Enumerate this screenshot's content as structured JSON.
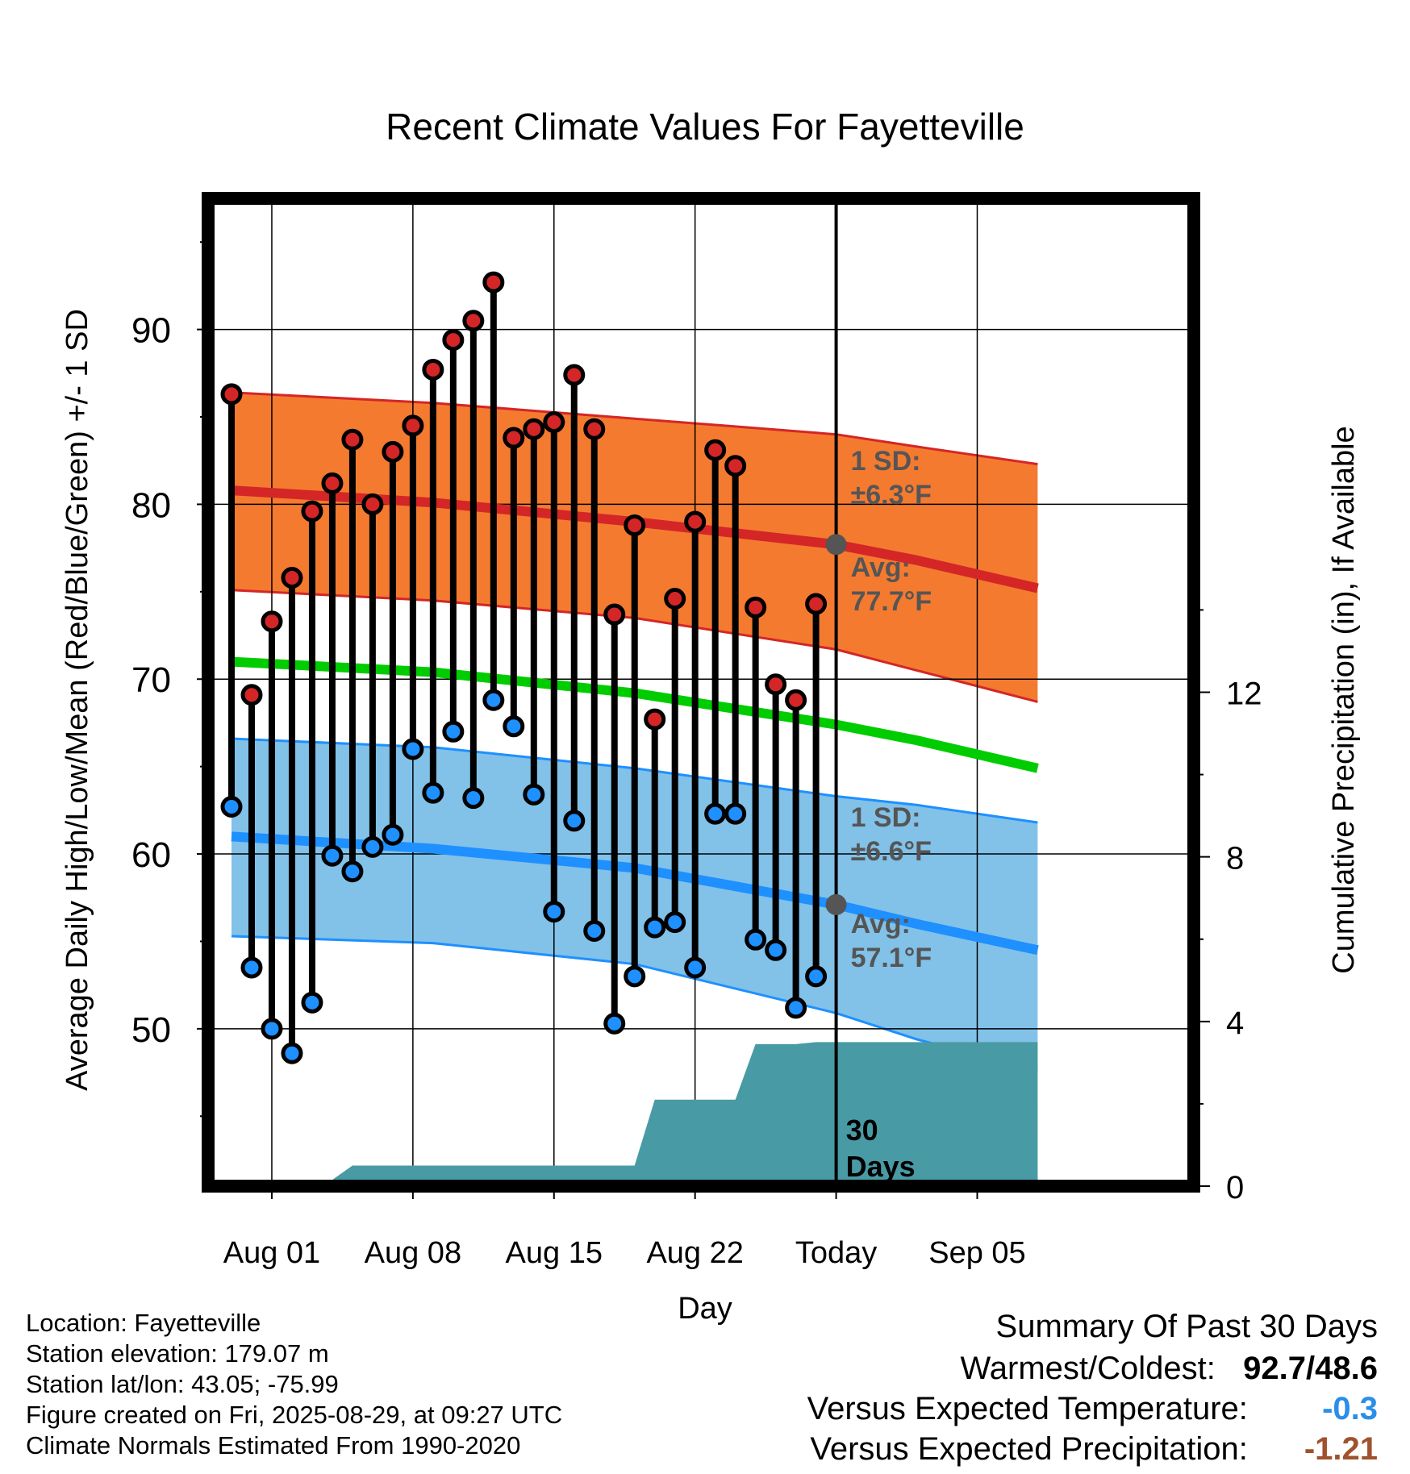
{
  "chart_data": {
    "type": "line",
    "title": "Recent Climate Values For Fayetteville",
    "xlabel": "Day",
    "ylabel": "Average Daily High/Low/Mean (Red/Blue/Green) +/- 1 SD",
    "y2label": "Cumulative Precipitation (in), If Available",
    "x_ticks": [
      "Aug 01",
      "Aug 08",
      "Aug 15",
      "Aug 22",
      "Today",
      "Sep 05"
    ],
    "y_ticks": [
      50,
      60,
      70,
      80,
      90
    ],
    "y2_ticks": [
      0,
      4,
      8,
      12
    ],
    "ylim": [
      41,
      97.5
    ],
    "y2lim": [
      0,
      24
    ],
    "grid": true,
    "days": [
      "Jul 30",
      "Jul 31",
      "Aug 01",
      "Aug 02",
      "Aug 03",
      "Aug 04",
      "Aug 05",
      "Aug 06",
      "Aug 07",
      "Aug 08",
      "Aug 09",
      "Aug 10",
      "Aug 11",
      "Aug 12",
      "Aug 13",
      "Aug 14",
      "Aug 15",
      "Aug 16",
      "Aug 17",
      "Aug 18",
      "Aug 19",
      "Aug 20",
      "Aug 21",
      "Aug 22",
      "Aug 23",
      "Aug 24",
      "Aug 25",
      "Aug 26",
      "Aug 27",
      "Aug 28"
    ],
    "daily_high": [
      86.3,
      69.1,
      73.3,
      75.8,
      79.6,
      81.2,
      83.7,
      80.0,
      83.0,
      84.5,
      87.7,
      89.4,
      90.5,
      92.7,
      83.8,
      84.3,
      84.7,
      87.4,
      84.3,
      73.7,
      78.8,
      67.7,
      74.6,
      79.0,
      83.1,
      82.2,
      74.1,
      69.7,
      68.8,
      74.3
    ],
    "daily_low": [
      62.7,
      53.5,
      50.0,
      48.6,
      51.5,
      59.9,
      59.0,
      60.4,
      61.1,
      66.0,
      63.5,
      67.0,
      63.2,
      68.8,
      67.3,
      63.4,
      56.7,
      61.9,
      55.6,
      50.3,
      53.0,
      55.8,
      56.1,
      53.5,
      62.3,
      62.3,
      55.1,
      54.5,
      51.2,
      53.0
    ],
    "normals": {
      "high_avg": [
        [
          0,
          80.8
        ],
        [
          10,
          80.1
        ],
        [
          20,
          79.0
        ],
        [
          30,
          77.7
        ],
        [
          34,
          76.8
        ],
        [
          40,
          75.2
        ]
      ],
      "high_upper": [
        [
          0,
          86.4
        ],
        [
          10,
          85.8
        ],
        [
          20,
          84.9
        ],
        [
          30,
          84.0
        ],
        [
          34,
          83.3
        ],
        [
          40,
          82.3
        ]
      ],
      "high_lower": [
        [
          0,
          75.1
        ],
        [
          10,
          74.5
        ],
        [
          20,
          73.5
        ],
        [
          30,
          71.7
        ],
        [
          34,
          70.5
        ],
        [
          40,
          68.7
        ]
      ],
      "mean": [
        [
          0,
          71.0
        ],
        [
          10,
          70.4
        ],
        [
          20,
          69.2
        ],
        [
          30,
          67.4
        ],
        [
          34,
          66.5
        ],
        [
          40,
          64.9
        ]
      ],
      "low_avg": [
        [
          0,
          61.0
        ],
        [
          10,
          60.3
        ],
        [
          20,
          59.2
        ],
        [
          30,
          57.1
        ],
        [
          34,
          56.0
        ],
        [
          40,
          54.5
        ]
      ],
      "low_upper": [
        [
          0,
          66.6
        ],
        [
          10,
          66.1
        ],
        [
          20,
          64.9
        ],
        [
          30,
          63.3
        ],
        [
          34,
          62.8
        ],
        [
          40,
          61.8
        ]
      ],
      "low_lower": [
        [
          0,
          55.3
        ],
        [
          10,
          54.9
        ],
        [
          20,
          53.7
        ],
        [
          30,
          50.9
        ],
        [
          34,
          49.4
        ],
        [
          40,
          47.6
        ]
      ]
    },
    "precip_cumulative": [
      [
        -1,
        0
      ],
      [
        0.9,
        0
      ],
      [
        1,
        0.15
      ],
      [
        5,
        0.15
      ],
      [
        6,
        0.5
      ],
      [
        19,
        0.5
      ],
      [
        20,
        0.5
      ],
      [
        21,
        2.1
      ],
      [
        22,
        2.1
      ],
      [
        24,
        2.1
      ],
      [
        25,
        2.1
      ],
      [
        26,
        3.45
      ],
      [
        28,
        3.45
      ],
      [
        29,
        3.5
      ],
      [
        30,
        3.5
      ],
      [
        40,
        3.5
      ]
    ],
    "today_index": 30,
    "annotations": {
      "high_sd": "1 SD:",
      "high_sd_value": "±6.3°F",
      "high_avg_label": "Avg:",
      "high_avg_value": "77.7°F",
      "low_sd": "1 SD:",
      "low_sd_value": "±6.6°F",
      "low_avg_label": "Avg:",
      "low_avg_value": "57.1°F",
      "window": "30",
      "window_unit": "Days"
    },
    "colors": {
      "high_band": "#f47a30",
      "high_line": "#d42626",
      "mean_line": "#00cc00",
      "low_band": "#82c1e8",
      "low_line": "#1e90ff",
      "precip": "#489ba5",
      "high_marker": "#d42626",
      "low_marker": "#1e90ff",
      "annotation": "#555555"
    }
  },
  "footer": {
    "location": "Location: Fayetteville",
    "elevation": "Station elevation: 179.07 m",
    "latlon": "Station lat/lon: 43.05; -75.99",
    "created": "Figure created on Fri, 2025-08-29, at 09:27 UTC",
    "normals": "Climate Normals Estimated From 1990-2020"
  },
  "summary": {
    "title": "Summary Of Past 30 Days",
    "warm_cold_label": "Warmest/Coldest:",
    "warm_cold_value": "92.7/48.6",
    "temp_label": "Versus Expected Temperature:",
    "temp_value": "-0.3",
    "temp_color": "#2b8ee8",
    "precip_label": "Versus Expected Precipitation:",
    "precip_value": "-1.21",
    "precip_color": "#a0522d"
  }
}
